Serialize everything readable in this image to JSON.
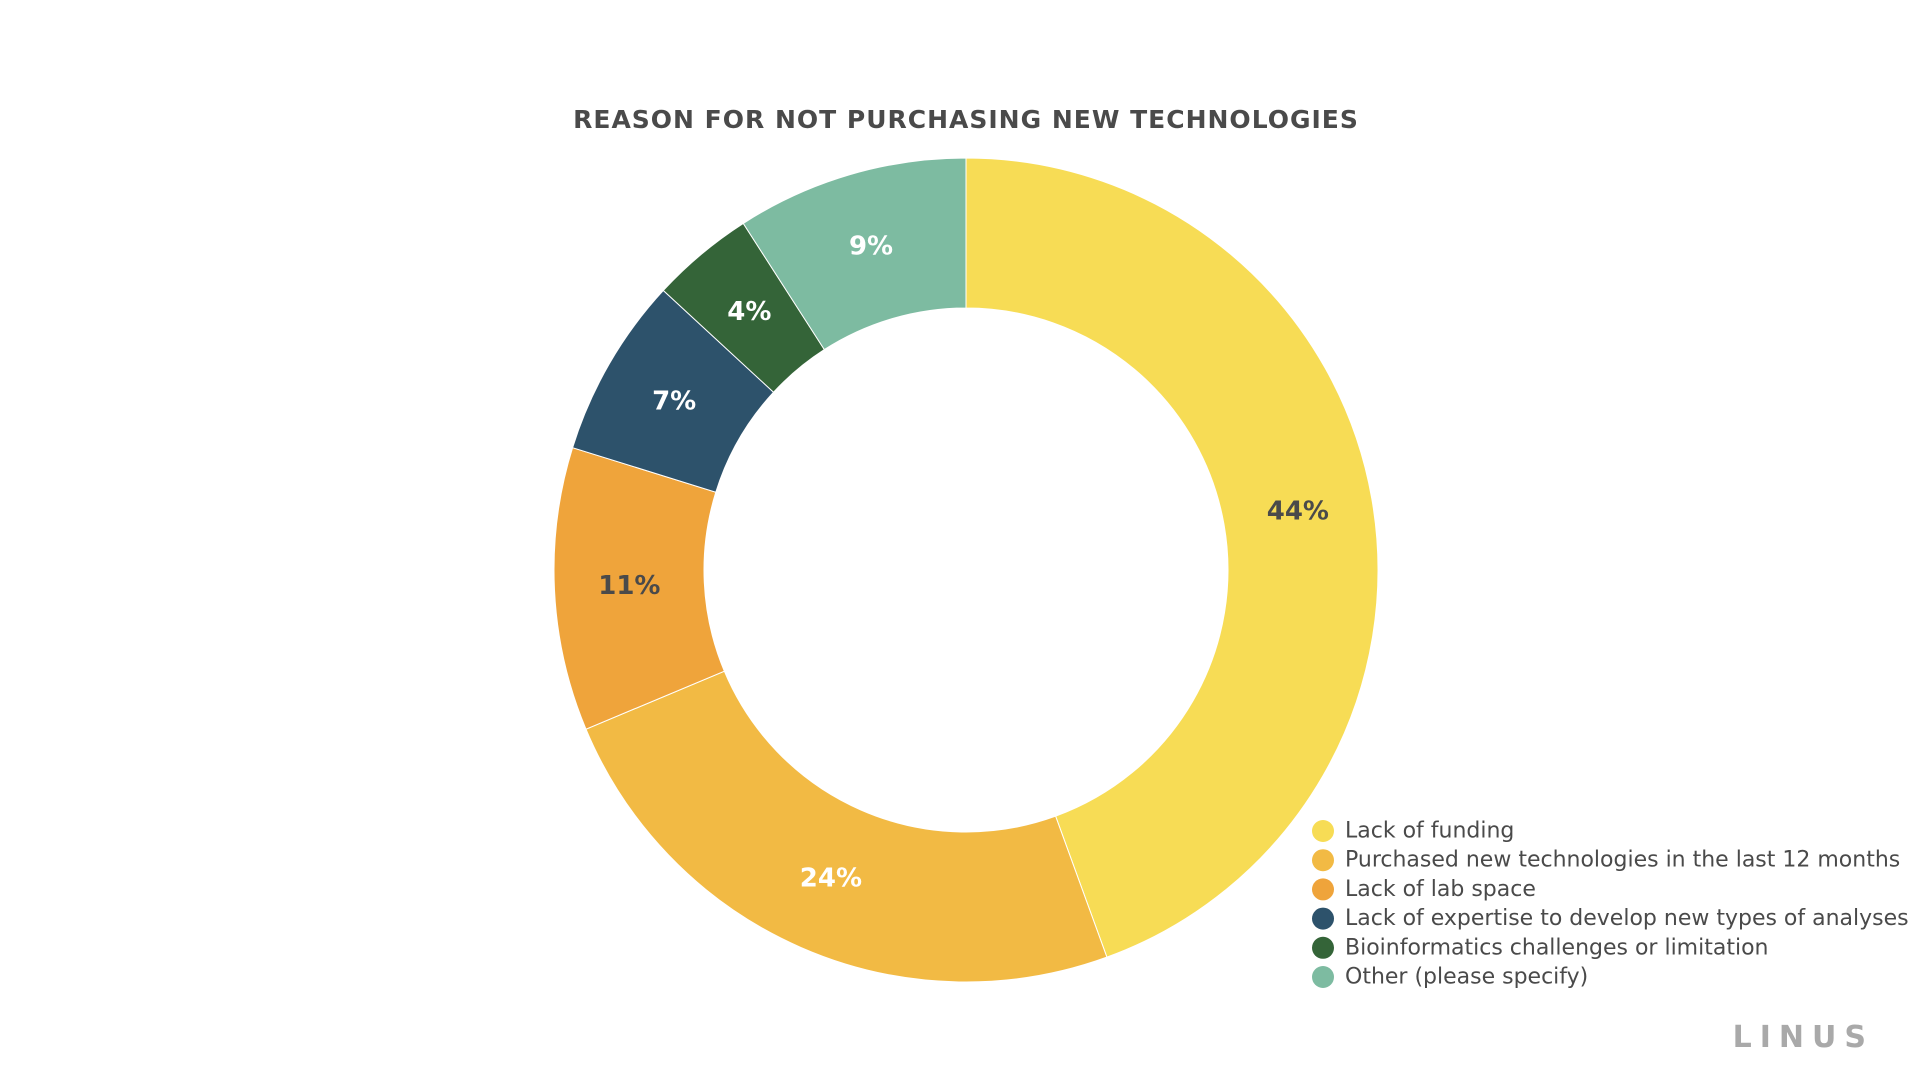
{
  "chart_data": {
    "type": "pie",
    "title": "REASON FOR NOT PURCHASING NEW TECHNOLOGIES",
    "style": "donut",
    "legend_position": "bottom-right",
    "slices": [
      {
        "label": "Lack of funding",
        "value": 44,
        "display": "44%",
        "color": "#F7DC55",
        "label_color": "#4a4a4a"
      },
      {
        "label": "Purchased new technologies in the last 12 months",
        "value": 24,
        "display": "24%",
        "color": "#F2BA44",
        "label_color": "#ffffff"
      },
      {
        "label": "Lack of lab space",
        "value": 11,
        "display": "11%",
        "color": "#EFA43B",
        "label_color": "#4a4a4a"
      },
      {
        "label": "Lack of expertise to develop new types of analyses",
        "value": 7,
        "display": "7%",
        "color": "#2D526B",
        "label_color": "#ffffff"
      },
      {
        "label": "Bioinformatics challenges or limitation",
        "value": 4,
        "display": "4%",
        "color": "#346438",
        "label_color": "#ffffff"
      },
      {
        "label": "Other (please specify)",
        "value": 9,
        "display": "9%",
        "color": "#7DBBA1",
        "label_color": "#ffffff"
      }
    ]
  },
  "brand": {
    "logo_text": "LINUS"
  }
}
